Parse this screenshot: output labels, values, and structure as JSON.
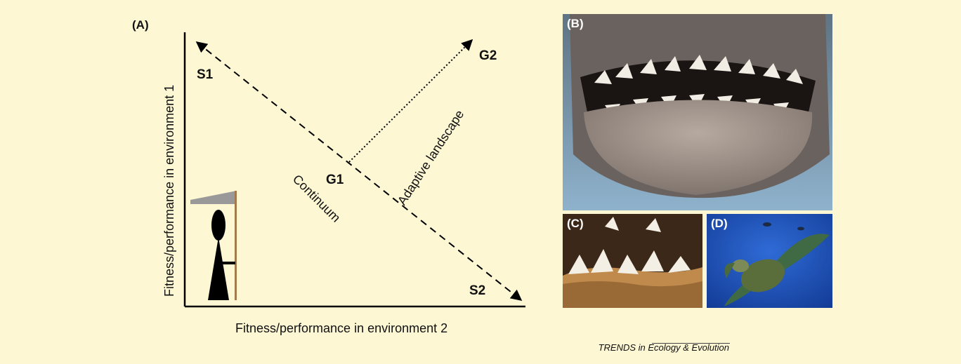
{
  "panels": {
    "a_label": "(A)",
    "b_label": "(B)",
    "c_label": "(C)",
    "d_label": "(D)"
  },
  "diagram": {
    "y_axis_title": "Fitness/performance in environment 1",
    "x_axis_title": "Fitness/performance in environment 2",
    "point_labels": {
      "s1": "S1",
      "s2": "S2",
      "g1": "G1",
      "g2": "G2"
    },
    "continuum_label": "Continuum",
    "adaptive_label": "Adaptive landscape",
    "colors": {
      "axis": "#000000",
      "balance_beam": "#999999",
      "balance_post": "#a47a4a",
      "figure": "#000000"
    }
  },
  "footer": {
    "source": "TRENDS in Ecology & Evolution"
  }
}
